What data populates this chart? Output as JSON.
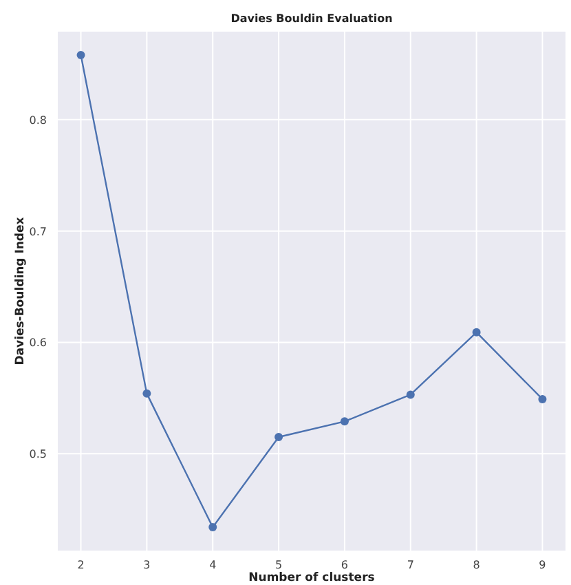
{
  "chart_data": {
    "type": "line",
    "title": "Davies Bouldin Evaluation",
    "xlabel": "Number of clusters",
    "ylabel": "Davies-Boulding Index",
    "x": [
      2,
      3,
      4,
      5,
      6,
      7,
      8,
      9
    ],
    "series": [
      {
        "color": "#4c72b0",
        "values": [
          0.858,
          0.554,
          0.434,
          0.515,
          0.529,
          0.553,
          0.609,
          0.549
        ]
      }
    ],
    "xlim": [
      1.65,
      9.35
    ],
    "xticks": [
      2,
      3,
      4,
      5,
      6,
      7,
      8,
      9
    ],
    "ylim": [
      0.413,
      0.879
    ],
    "yticks": [
      0.5,
      0.6,
      0.7,
      0.8
    ],
    "grid": true,
    "marker": "circle",
    "line_style": "solid"
  }
}
